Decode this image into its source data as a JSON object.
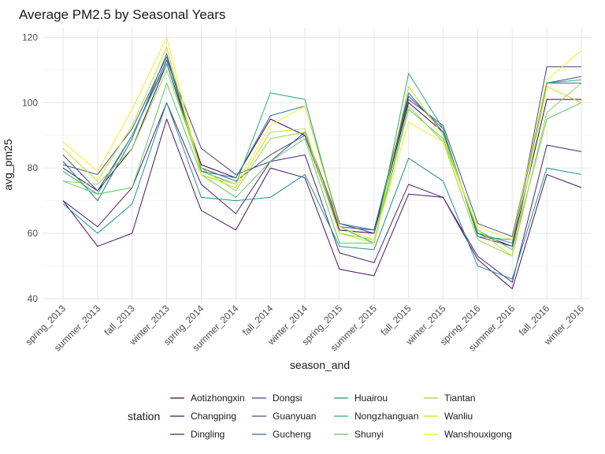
{
  "chart_data": {
    "type": "line",
    "title": "Average PM2.5 by Seasonal Years",
    "xlabel": "season_and",
    "ylabel": "avg_pm25",
    "ylim": [
      39,
      123
    ],
    "yticks": [
      40,
      60,
      80,
      100,
      120
    ],
    "grid": true,
    "legend_title": "station",
    "legend_position": "bottom",
    "categories": [
      "spring_2013",
      "summer_2013",
      "fall_2013",
      "winter_2013",
      "spring_2014",
      "summer_2014",
      "fall_2014",
      "winter_2014",
      "spring_2015",
      "summer_2015",
      "fall_2015",
      "winter_2015",
      "spring_2016",
      "summer_2016",
      "fall_2016",
      "winter_2016"
    ],
    "series": [
      {
        "name": "Aotizhongxin",
        "color": "#440154",
        "values": [
          80,
          73,
          86,
          112,
          81,
          77,
          95,
          90,
          61,
          60,
          100,
          91,
          60,
          56,
          101,
          101
        ]
      },
      {
        "name": "Changping",
        "color": "#471365",
        "values": [
          70,
          56,
          60,
          95,
          67,
          61,
          80,
          77,
          49,
          47,
          72,
          71,
          52,
          43,
          78,
          74
        ]
      },
      {
        "name": "Dingling",
        "color": "#482475",
        "values": [
          70,
          62,
          74,
          100,
          75,
          66,
          82,
          84,
          54,
          51,
          75,
          71,
          53,
          45,
          87,
          85
        ]
      },
      {
        "name": "Dongsi",
        "color": "#414487",
        "values": [
          84,
          73,
          90,
          113,
          86,
          78,
          82,
          91,
          63,
          60,
          102,
          92,
          59,
          56,
          111,
          111
        ]
      },
      {
        "name": "Guanyuan",
        "color": "#3b528b",
        "values": [
          81,
          78,
          92,
          114,
          80,
          76,
          84,
          90,
          62,
          61,
          101,
          93,
          63,
          59,
          106,
          108
        ]
      },
      {
        "name": "Gucheng",
        "color": "#2c728e",
        "values": [
          82,
          70,
          89,
          115,
          79,
          77,
          96,
          99,
          63,
          61,
          103,
          91,
          60,
          57,
          106,
          106
        ]
      },
      {
        "name": "Huairou",
        "color": "#21908c",
        "values": [
          69,
          60,
          69,
          100,
          71,
          70,
          71,
          78,
          56,
          55,
          83,
          76,
          50,
          46,
          80,
          78
        ]
      },
      {
        "name": "Nongzhanguan",
        "color": "#27ad81",
        "values": [
          79,
          72,
          90,
          112,
          79,
          75,
          103,
          101,
          62,
          57,
          109,
          92,
          59,
          58,
          106,
          107
        ]
      },
      {
        "name": "Shunyi",
        "color": "#5dc863",
        "values": [
          76,
          72,
          74,
          106,
          78,
          71,
          82,
          89,
          57,
          57,
          98,
          89,
          61,
          55,
          95,
          100
        ]
      },
      {
        "name": "Tiantan",
        "color": "#8fd744",
        "values": [
          76,
          75,
          86,
          110,
          80,
          73,
          89,
          91,
          60,
          58,
          99,
          88,
          58,
          53,
          97,
          106
        ]
      },
      {
        "name": "Wanliu",
        "color": "#c8e020",
        "values": [
          86,
          76,
          93,
          117,
          78,
          74,
          91,
          92,
          60,
          57,
          105,
          90,
          61,
          53,
          105,
          100
        ]
      },
      {
        "name": "Wanshouxigong",
        "color": "#fde725",
        "values": [
          88,
          79,
          98,
          120,
          78,
          75,
          93,
          99,
          62,
          58,
          94,
          88,
          62,
          58,
          107,
          116
        ]
      }
    ]
  }
}
